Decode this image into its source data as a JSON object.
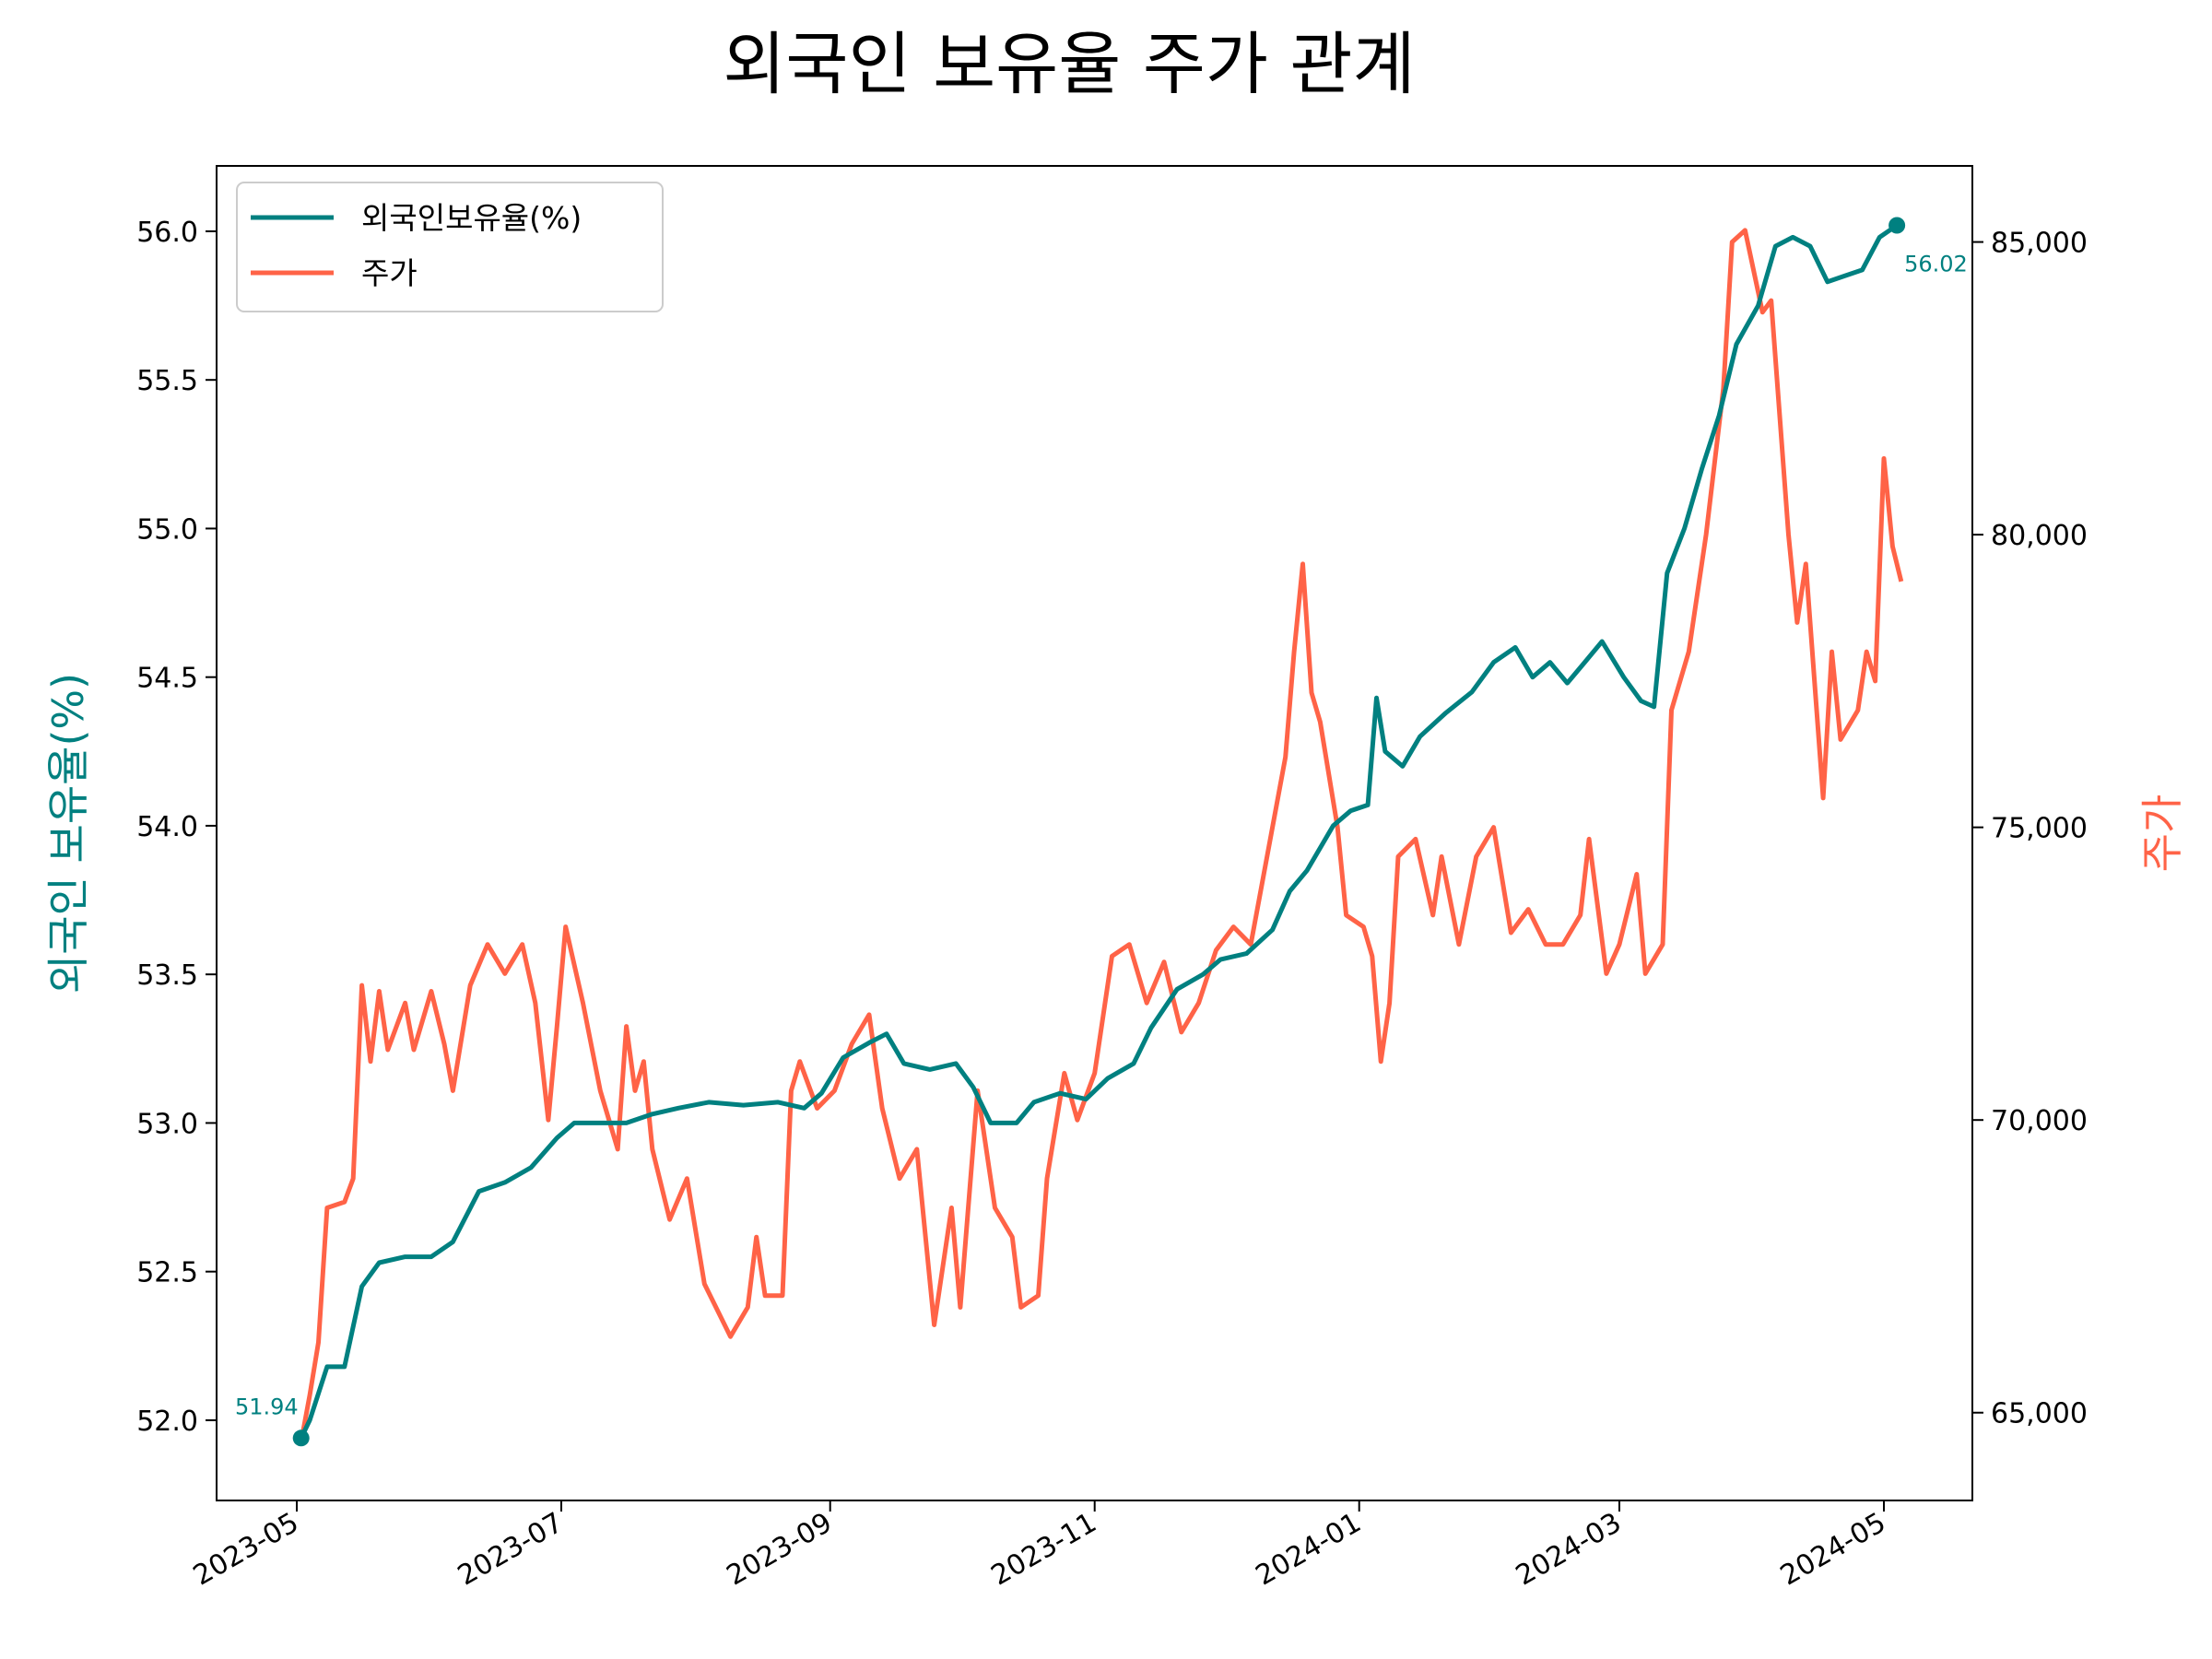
{
  "chart_data": {
    "type": "line",
    "title": "외국인 보유율 주가 관계",
    "xlabel": "",
    "x_ticks": [
      "2023-05",
      "2023-07",
      "2023-09",
      "2023-11",
      "2024-01",
      "2024-03",
      "2024-05"
    ],
    "left_axis": {
      "label": "외국인 보유율(%)",
      "range": [
        51.73,
        56.22
      ],
      "ticks": [
        "52.0",
        "52.5",
        "53.0",
        "53.5",
        "54.0",
        "54.5",
        "55.0",
        "55.5",
        "56.0"
      ]
    },
    "right_axis": {
      "label": "주가",
      "range": [
        63500,
        86300
      ],
      "ticks": [
        "65,000",
        "70,000",
        "75,000",
        "80,000",
        "85,000"
      ]
    },
    "grid": false,
    "legend_position": "top-left",
    "colors": {
      "ratio": "#008080",
      "price": "#FF6347"
    },
    "series": [
      {
        "name": "외국인보유율(%)",
        "axis": "left",
        "points": [
          [
            "2023-05-02",
            51.94
          ],
          [
            "2023-05-04",
            52.0
          ],
          [
            "2023-05-08",
            52.18
          ],
          [
            "2023-05-12",
            52.18
          ],
          [
            "2023-05-16",
            52.45
          ],
          [
            "2023-05-20",
            52.53
          ],
          [
            "2023-05-26",
            52.55
          ],
          [
            "2023-06-01",
            52.55
          ],
          [
            "2023-06-06",
            52.6
          ],
          [
            "2023-06-12",
            52.77
          ],
          [
            "2023-06-18",
            52.8
          ],
          [
            "2023-06-24",
            52.85
          ],
          [
            "2023-06-30",
            52.95
          ],
          [
            "2023-07-04",
            53.0
          ],
          [
            "2023-07-10",
            53.0
          ],
          [
            "2023-07-16",
            53.0
          ],
          [
            "2023-07-22",
            53.03
          ],
          [
            "2023-07-28",
            53.05
          ],
          [
            "2023-08-04",
            53.07
          ],
          [
            "2023-08-12",
            53.06
          ],
          [
            "2023-08-20",
            53.07
          ],
          [
            "2023-08-26",
            53.05
          ],
          [
            "2023-08-30",
            53.1
          ],
          [
            "2023-09-04",
            53.22
          ],
          [
            "2023-09-10",
            53.27
          ],
          [
            "2023-09-14",
            53.3
          ],
          [
            "2023-09-18",
            53.2
          ],
          [
            "2023-09-24",
            53.18
          ],
          [
            "2023-09-30",
            53.2
          ],
          [
            "2023-10-04",
            53.12
          ],
          [
            "2023-10-08",
            53.0
          ],
          [
            "2023-10-14",
            53.0
          ],
          [
            "2023-10-18",
            53.07
          ],
          [
            "2023-10-24",
            53.1
          ],
          [
            "2023-10-30",
            53.08
          ],
          [
            "2023-11-04",
            53.15
          ],
          [
            "2023-11-10",
            53.2
          ],
          [
            "2023-11-14",
            53.32
          ],
          [
            "2023-11-20",
            53.45
          ],
          [
            "2023-11-26",
            53.5
          ],
          [
            "2023-11-30",
            53.55
          ],
          [
            "2023-12-06",
            53.57
          ],
          [
            "2023-12-12",
            53.65
          ],
          [
            "2023-12-16",
            53.78
          ],
          [
            "2023-12-20",
            53.85
          ],
          [
            "2023-12-26",
            54.0
          ],
          [
            "2023-12-30",
            54.05
          ],
          [
            "2024-01-03",
            54.07
          ],
          [
            "2024-01-05",
            54.43
          ],
          [
            "2024-01-07",
            54.25
          ],
          [
            "2024-01-11",
            54.2
          ],
          [
            "2024-01-15",
            54.3
          ],
          [
            "2024-01-21",
            54.38
          ],
          [
            "2024-01-27",
            54.45
          ],
          [
            "2024-02-01",
            54.55
          ],
          [
            "2024-02-06",
            54.6
          ],
          [
            "2024-02-10",
            54.5
          ],
          [
            "2024-02-14",
            54.55
          ],
          [
            "2024-02-18",
            54.48
          ],
          [
            "2024-02-22",
            54.55
          ],
          [
            "2024-02-26",
            54.62
          ],
          [
            "2024-03-02",
            54.5
          ],
          [
            "2024-03-06",
            54.42
          ],
          [
            "2024-03-09",
            54.4
          ],
          [
            "2024-03-12",
            54.85
          ],
          [
            "2024-03-16",
            55.0
          ],
          [
            "2024-03-20",
            55.2
          ],
          [
            "2024-03-24",
            55.38
          ],
          [
            "2024-03-28",
            55.62
          ],
          [
            "2024-04-02",
            55.75
          ],
          [
            "2024-04-06",
            55.95
          ],
          [
            "2024-04-10",
            55.98
          ],
          [
            "2024-04-14",
            55.95
          ],
          [
            "2024-04-18",
            55.83
          ],
          [
            "2024-04-22",
            55.85
          ],
          [
            "2024-04-26",
            55.87
          ],
          [
            "2024-04-30",
            55.98
          ],
          [
            "2024-05-04",
            56.02
          ]
        ]
      },
      {
        "name": "주가",
        "axis": "right",
        "points": [
          [
            "2023-05-02",
            64500
          ],
          [
            "2023-05-04",
            65300
          ],
          [
            "2023-05-06",
            66200
          ],
          [
            "2023-05-08",
            68500
          ],
          [
            "2023-05-12",
            68600
          ],
          [
            "2023-05-14",
            69000
          ],
          [
            "2023-05-16",
            72300
          ],
          [
            "2023-05-18",
            71000
          ],
          [
            "2023-05-20",
            72200
          ],
          [
            "2023-05-22",
            71200
          ],
          [
            "2023-05-26",
            72000
          ],
          [
            "2023-05-28",
            71200
          ],
          [
            "2023-06-01",
            72200
          ],
          [
            "2023-06-04",
            71300
          ],
          [
            "2023-06-06",
            70500
          ],
          [
            "2023-06-10",
            72300
          ],
          [
            "2023-06-14",
            73000
          ],
          [
            "2023-06-18",
            72500
          ],
          [
            "2023-06-22",
            73000
          ],
          [
            "2023-06-25",
            72000
          ],
          [
            "2023-06-28",
            70000
          ],
          [
            "2023-06-30",
            71600
          ],
          [
            "2023-07-02",
            73300
          ],
          [
            "2023-07-06",
            72000
          ],
          [
            "2023-07-10",
            70500
          ],
          [
            "2023-07-14",
            69500
          ],
          [
            "2023-07-16",
            71600
          ],
          [
            "2023-07-18",
            70500
          ],
          [
            "2023-07-20",
            71000
          ],
          [
            "2023-07-22",
            69500
          ],
          [
            "2023-07-26",
            68300
          ],
          [
            "2023-07-30",
            69000
          ],
          [
            "2023-08-03",
            67200
          ],
          [
            "2023-08-09",
            66300
          ],
          [
            "2023-08-13",
            66800
          ],
          [
            "2023-08-15",
            68000
          ],
          [
            "2023-08-17",
            67000
          ],
          [
            "2023-08-21",
            67000
          ],
          [
            "2023-08-23",
            70500
          ],
          [
            "2023-08-25",
            71000
          ],
          [
            "2023-08-29",
            70200
          ],
          [
            "2023-09-02",
            70500
          ],
          [
            "2023-09-06",
            71300
          ],
          [
            "2023-09-10",
            71800
          ],
          [
            "2023-09-13",
            70200
          ],
          [
            "2023-09-17",
            69000
          ],
          [
            "2023-09-21",
            69500
          ],
          [
            "2023-09-25",
            66500
          ],
          [
            "2023-09-29",
            68500
          ],
          [
            "2023-10-01",
            66800
          ],
          [
            "2023-10-05",
            70500
          ],
          [
            "2023-10-09",
            68500
          ],
          [
            "2023-10-13",
            68000
          ],
          [
            "2023-10-15",
            66800
          ],
          [
            "2023-10-19",
            67000
          ],
          [
            "2023-10-21",
            69000
          ],
          [
            "2023-10-25",
            70800
          ],
          [
            "2023-10-28",
            70000
          ],
          [
            "2023-11-01",
            70800
          ],
          [
            "2023-11-05",
            72800
          ],
          [
            "2023-11-09",
            73000
          ],
          [
            "2023-11-13",
            72000
          ],
          [
            "2023-11-17",
            72700
          ],
          [
            "2023-11-21",
            71500
          ],
          [
            "2023-11-25",
            72000
          ],
          [
            "2023-11-29",
            72900
          ],
          [
            "2023-12-03",
            73300
          ],
          [
            "2023-12-07",
            73000
          ],
          [
            "2023-12-11",
            74600
          ],
          [
            "2023-12-15",
            76200
          ],
          [
            "2023-12-17",
            78000
          ],
          [
            "2023-12-19",
            79500
          ],
          [
            "2023-12-21",
            77300
          ],
          [
            "2023-12-23",
            76800
          ],
          [
            "2023-12-27",
            75000
          ],
          [
            "2023-12-29",
            73500
          ],
          [
            "2024-01-02",
            73300
          ],
          [
            "2024-01-04",
            72800
          ],
          [
            "2024-01-06",
            71000
          ],
          [
            "2024-01-08",
            72000
          ],
          [
            "2024-01-10",
            74500
          ],
          [
            "2024-01-14",
            74800
          ],
          [
            "2024-01-18",
            73500
          ],
          [
            "2024-01-20",
            74500
          ],
          [
            "2024-01-24",
            73000
          ],
          [
            "2024-01-28",
            74500
          ],
          [
            "2024-02-01",
            75000
          ],
          [
            "2024-02-05",
            73200
          ],
          [
            "2024-02-09",
            73600
          ],
          [
            "2024-02-13",
            73000
          ],
          [
            "2024-02-17",
            73000
          ],
          [
            "2024-02-21",
            73500
          ],
          [
            "2024-02-23",
            74800
          ],
          [
            "2024-02-27",
            72500
          ],
          [
            "2024-03-01",
            73000
          ],
          [
            "2024-03-05",
            74200
          ],
          [
            "2024-03-07",
            72500
          ],
          [
            "2024-03-11",
            73000
          ],
          [
            "2024-03-13",
            77000
          ],
          [
            "2024-03-17",
            78000
          ],
          [
            "2024-03-21",
            80000
          ],
          [
            "2024-03-25",
            82500
          ],
          [
            "2024-03-27",
            85000
          ],
          [
            "2024-03-30",
            85200
          ],
          [
            "2024-04-03",
            83800
          ],
          [
            "2024-04-05",
            84000
          ],
          [
            "2024-04-07",
            82000
          ],
          [
            "2024-04-09",
            80000
          ],
          [
            "2024-04-11",
            78500
          ],
          [
            "2024-04-13",
            79500
          ],
          [
            "2024-04-15",
            77500
          ],
          [
            "2024-04-17",
            75500
          ],
          [
            "2024-04-19",
            78000
          ],
          [
            "2024-04-21",
            76500
          ],
          [
            "2024-04-25",
            77000
          ],
          [
            "2024-04-27",
            78000
          ],
          [
            "2024-04-29",
            77500
          ],
          [
            "2024-05-01",
            81300
          ],
          [
            "2024-05-03",
            79800
          ],
          [
            "2024-05-05",
            79200
          ]
        ]
      }
    ],
    "annotations": [
      {
        "text": "51.94",
        "date": "2023-05-02",
        "value": 51.94,
        "axis": "left"
      },
      {
        "text": "56.02",
        "date": "2024-05-04",
        "value": 56.02,
        "axis": "left"
      }
    ]
  }
}
